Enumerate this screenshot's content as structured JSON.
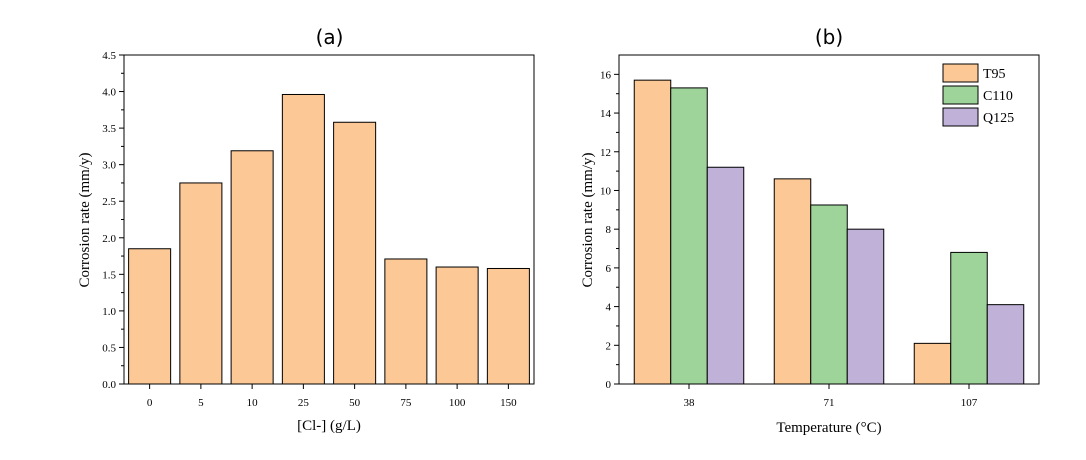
{
  "chart_data": [
    {
      "type": "bar",
      "title": "(a)",
      "xlabel": "[Cl-] (g/L)",
      "ylabel": "Corrosion rate (mm/y)",
      "categories": [
        "0",
        "5",
        "10",
        "25",
        "50",
        "75",
        "100",
        "150"
      ],
      "values": [
        1.85,
        2.75,
        3.19,
        3.96,
        3.58,
        1.71,
        1.6,
        1.58
      ],
      "ylim": [
        0,
        4.5
      ],
      "yticks": [
        "0.0",
        "0.5",
        "1.0",
        "1.5",
        "2.0",
        "2.5",
        "3.0",
        "3.5",
        "4.0",
        "4.5"
      ],
      "color": "#fcc896",
      "grid": false
    },
    {
      "type": "bar",
      "title": "(b)",
      "xlabel": "Temperature (°C)",
      "ylabel": "Corrosion rate (mm/y)",
      "categories": [
        "38",
        "71",
        "107"
      ],
      "series": [
        {
          "name": "T95",
          "values": [
            15.7,
            10.6,
            2.1
          ],
          "color": "#fcc896"
        },
        {
          "name": "C110",
          "values": [
            15.3,
            9.25,
            6.8
          ],
          "color": "#9ed49a"
        },
        {
          "name": "Q125",
          "values": [
            11.2,
            8.0,
            4.1
          ],
          "color": "#c0b1d8"
        }
      ],
      "ylim": [
        0,
        17
      ],
      "yticks": [
        "0",
        "2",
        "4",
        "6",
        "8",
        "10",
        "12",
        "14",
        "16"
      ],
      "legend": "top-right",
      "grid": false
    }
  ]
}
